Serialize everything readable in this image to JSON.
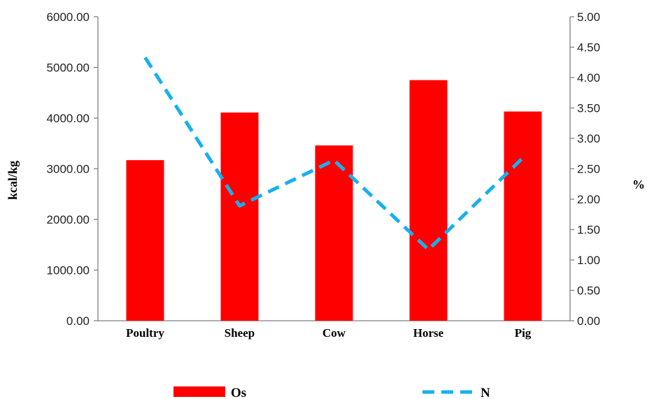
{
  "chart_data": {
    "type": "bar",
    "categories": [
      "Poultry",
      "Sheep",
      "Cow",
      "Horse",
      "Pig"
    ],
    "series": [
      {
        "name": "Os",
        "type": "bar",
        "axis": "left",
        "color": "#ff0000",
        "values": [
          3170,
          4110,
          3460,
          4750,
          4130
        ]
      },
      {
        "name": "N",
        "type": "line",
        "axis": "right",
        "color": "#17b0ef",
        "line_style": "dashed",
        "values": [
          4.33,
          1.89,
          2.64,
          1.17,
          2.68
        ]
      }
    ],
    "y_left": {
      "label": "kcal/kg",
      "lim": [
        0,
        6000
      ],
      "ticks": [
        "0.00",
        "1000.00",
        "2000.00",
        "3000.00",
        "4000.00",
        "5000.00",
        "6000.00"
      ]
    },
    "y_right": {
      "label": "%",
      "lim": [
        0,
        5
      ],
      "ticks": [
        "0.00",
        "0.50",
        "1.00",
        "1.50",
        "2.00",
        "2.50",
        "3.00",
        "3.50",
        "4.00",
        "4.50",
        "5.00"
      ]
    },
    "grid": false,
    "legend_position": "bottom"
  }
}
